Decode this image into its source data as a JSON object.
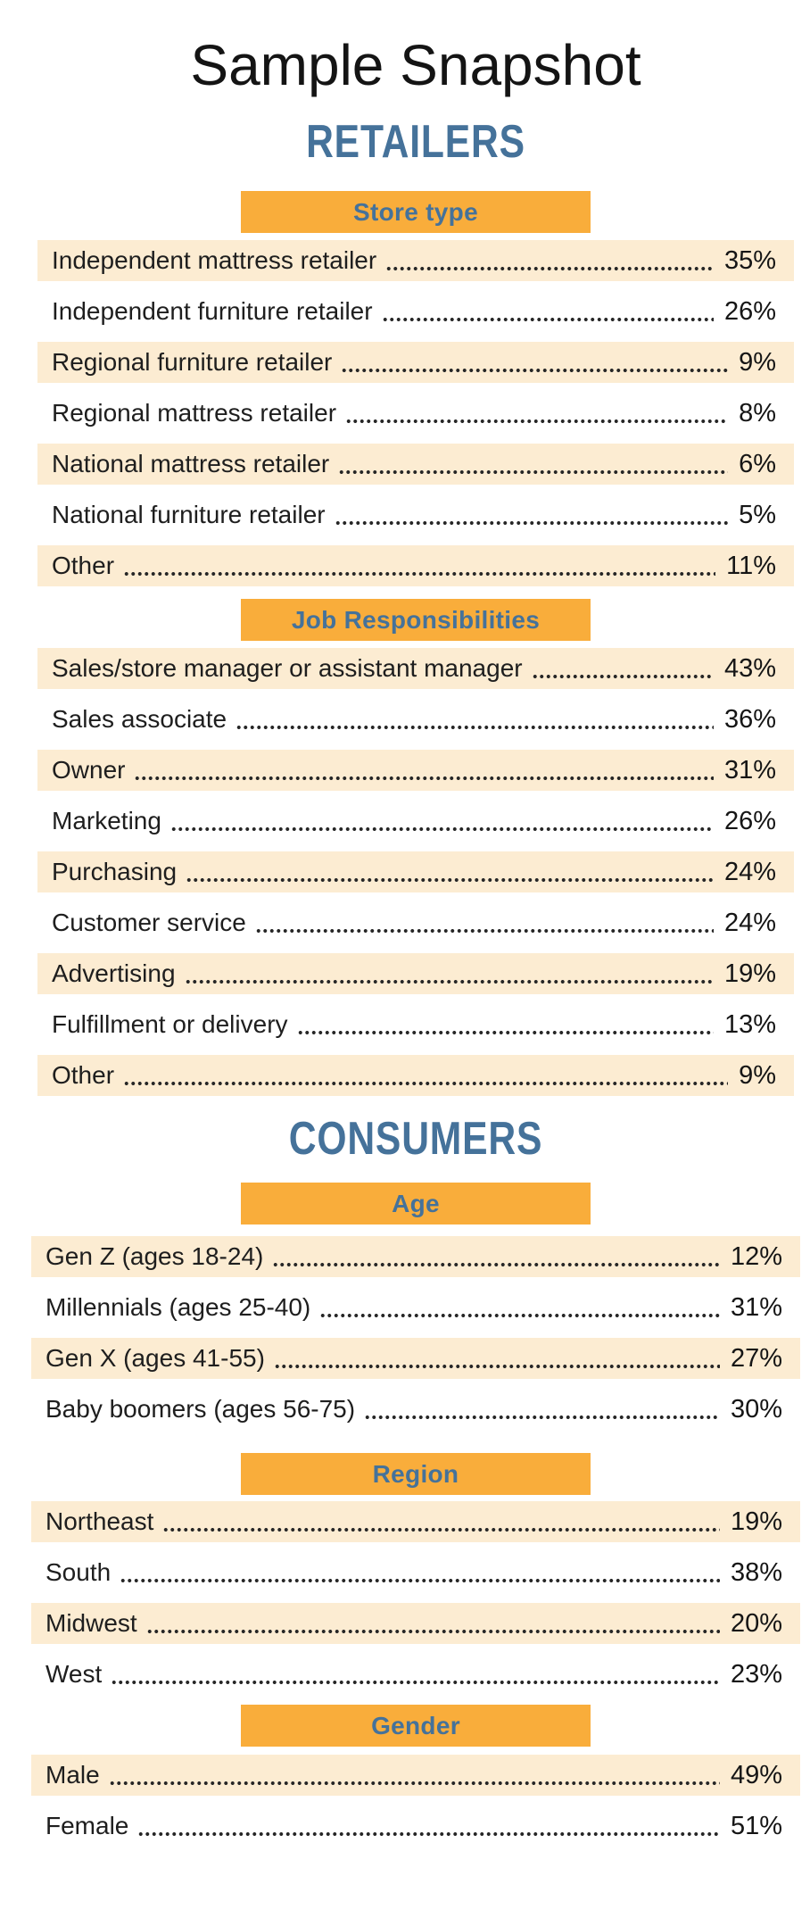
{
  "page": {
    "title": "Sample Snapshot"
  },
  "colors": {
    "band_orange": "#F9AD3B",
    "row_cream": "#FCECD2",
    "heading_blue": "#45729A",
    "text_dark": "#212121"
  },
  "sections": [
    {
      "heading": "RETAILERS",
      "groups": [
        {
          "band": "Store type",
          "rows": [
            {
              "label": "Independent mattress retailer",
              "value": "35%"
            },
            {
              "label": "Independent furniture retailer",
              "value": "26%"
            },
            {
              "label": "Regional furniture retailer",
              "value": "9%"
            },
            {
              "label": "Regional mattress retailer",
              "value": "8%"
            },
            {
              "label": "National mattress retailer",
              "value": "6%"
            },
            {
              "label": "National furniture retailer",
              "value": "5%"
            },
            {
              "label": "Other",
              "value": "11%"
            }
          ]
        },
        {
          "band": "Job Responsibilities",
          "rows": [
            {
              "label": "Sales/store manager or assistant manager",
              "value": "43%"
            },
            {
              "label": "Sales associate",
              "value": "36%"
            },
            {
              "label": "Owner",
              "value": "31%"
            },
            {
              "label": "Marketing",
              "value": "26%"
            },
            {
              "label": "Purchasing",
              "value": "24%"
            },
            {
              "label": "Customer service",
              "value": "24%"
            },
            {
              "label": "Advertising",
              "value": "19%"
            },
            {
              "label": "Fulfillment or delivery",
              "value": "13%"
            },
            {
              "label": "Other",
              "value": "9%"
            }
          ]
        }
      ]
    },
    {
      "heading": "CONSUMERS",
      "groups": [
        {
          "band": "Age",
          "rows": [
            {
              "label": "Gen Z (ages 18-24)",
              "value": "12%"
            },
            {
              "label": "Millennials (ages 25-40)",
              "value": "31%"
            },
            {
              "label": "Gen X (ages 41-55)",
              "value": "27%"
            },
            {
              "label": "Baby boomers (ages 56-75)",
              "value": "30%"
            }
          ]
        },
        {
          "band": "Region",
          "rows": [
            {
              "label": "Northeast",
              "value": "19%"
            },
            {
              "label": "South",
              "value": "38%"
            },
            {
              "label": "Midwest",
              "value": "20%"
            },
            {
              "label": "West",
              "value": "23%"
            }
          ]
        },
        {
          "band": "Gender",
          "rows": [
            {
              "label": "Male",
              "value": "49%"
            },
            {
              "label": "Female",
              "value": "51%"
            }
          ]
        }
      ]
    }
  ]
}
